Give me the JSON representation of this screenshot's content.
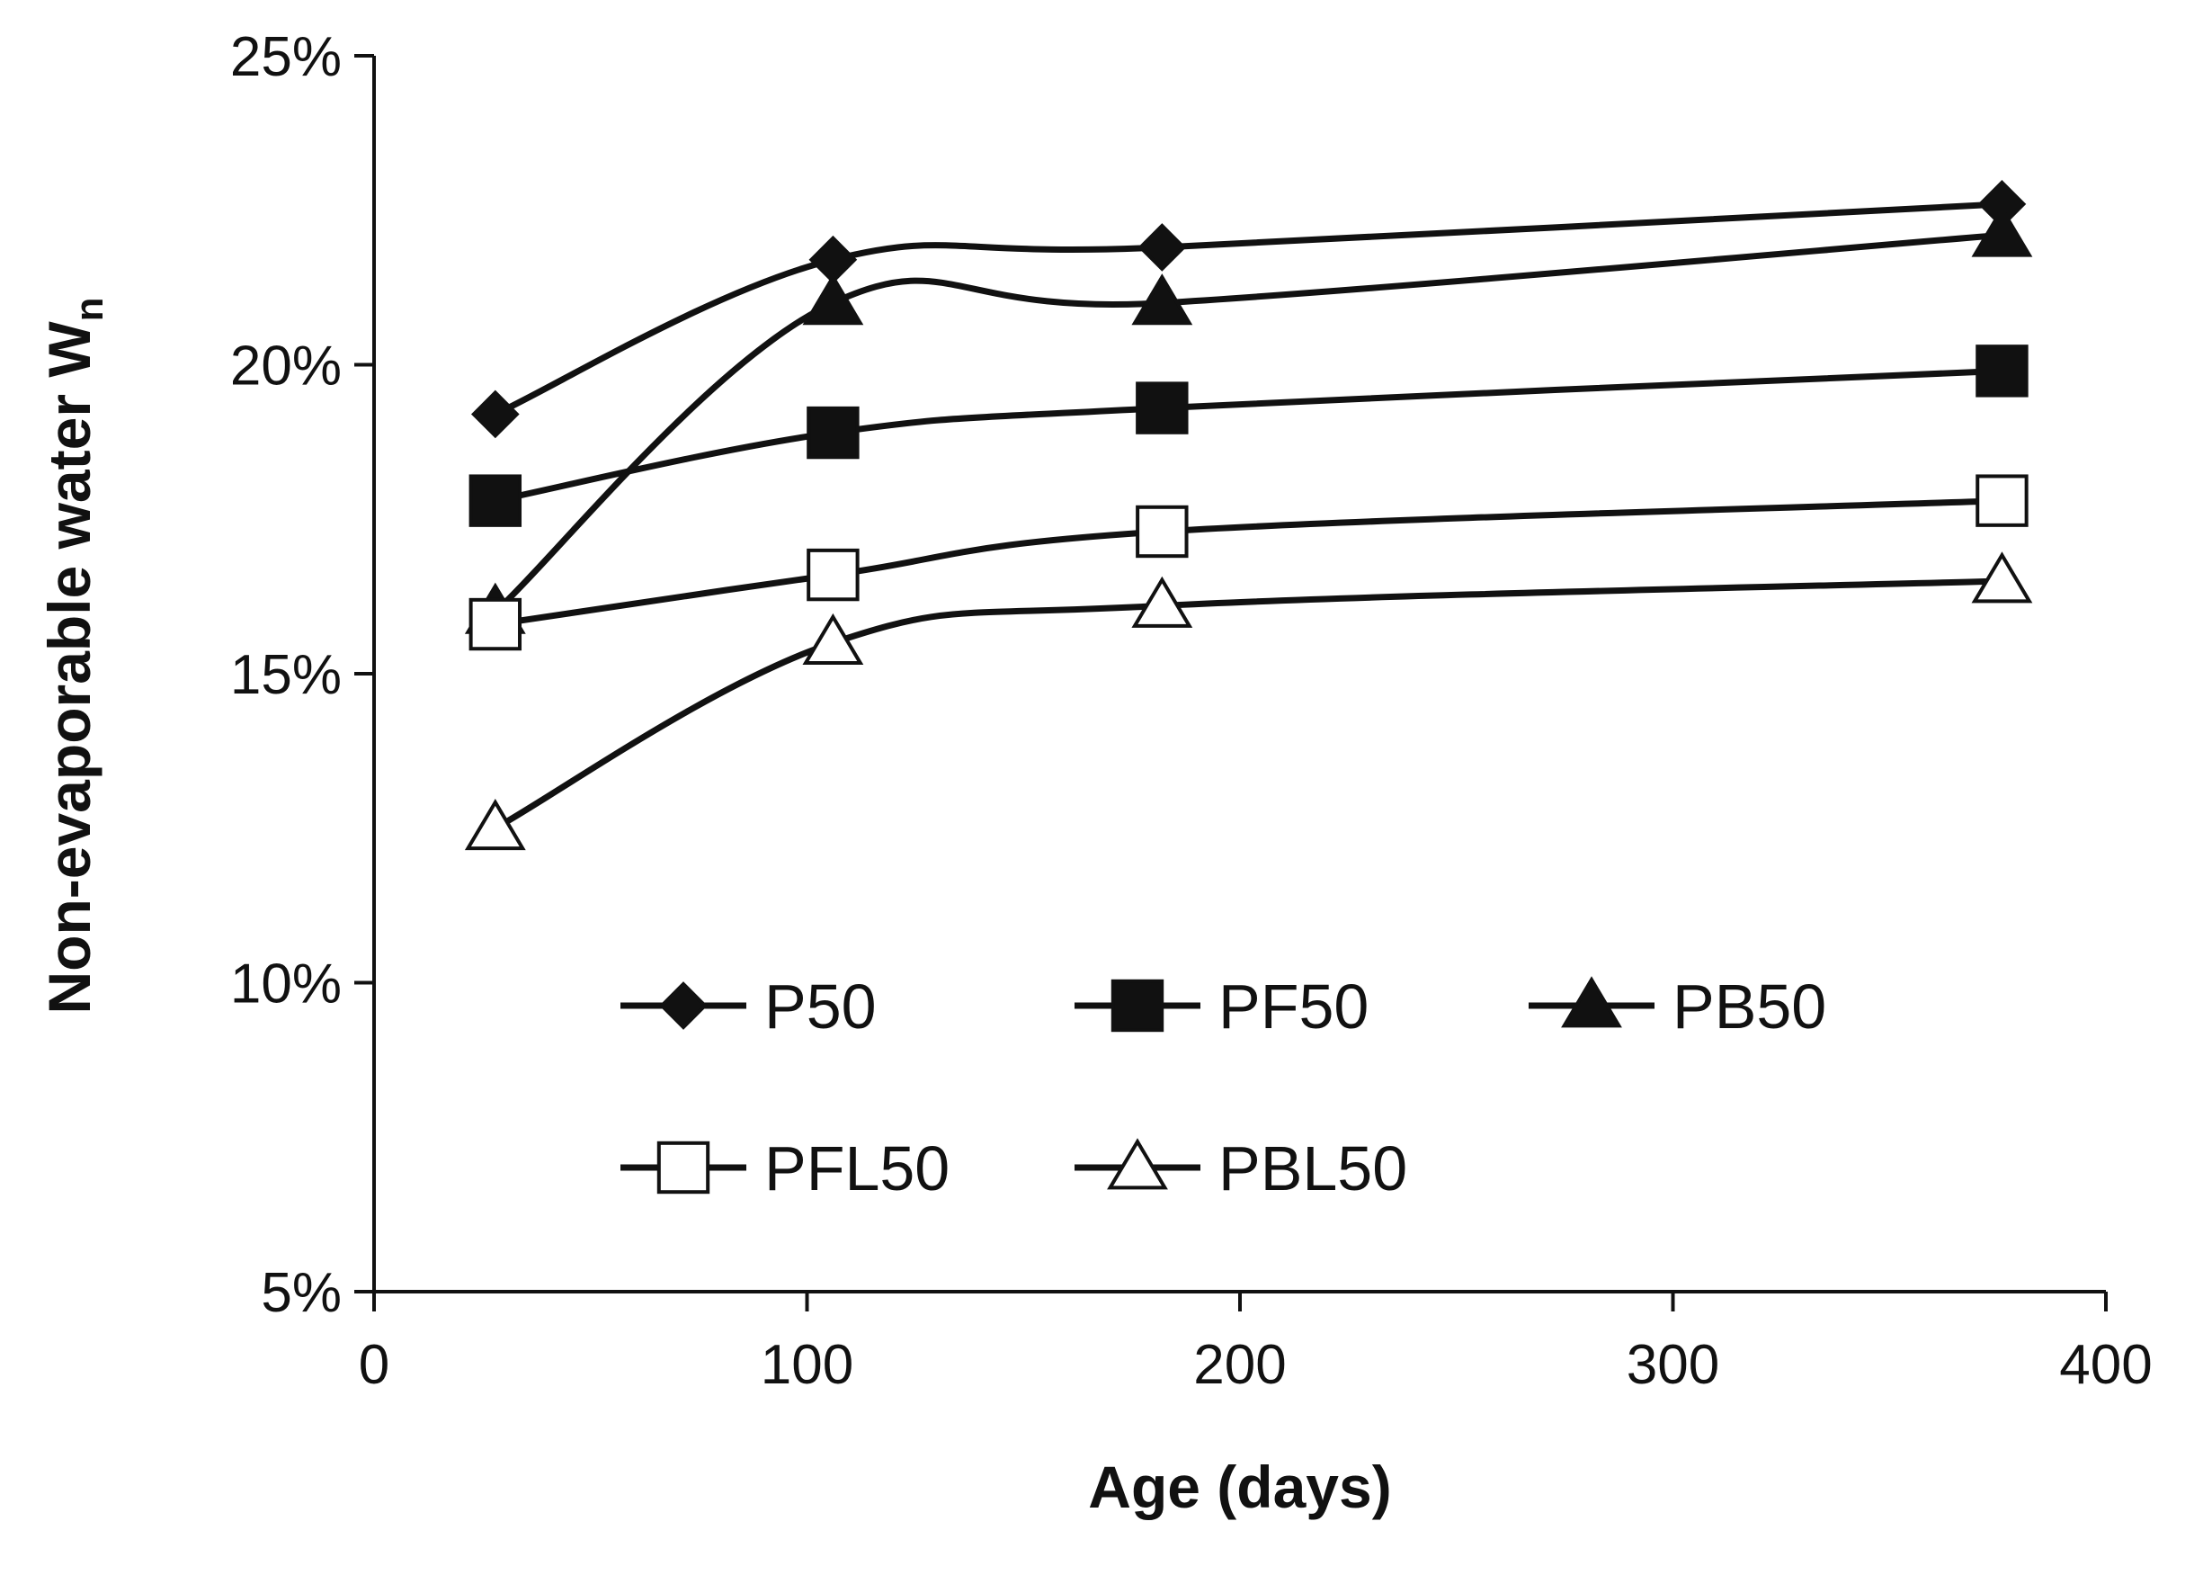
{
  "chart_data": {
    "type": "line",
    "xlabel": "Age (days)",
    "ylabel": "Non-evaporable water W",
    "ylabel_subscript": "n",
    "xlim": [
      0,
      400
    ],
    "ylim": [
      0.05,
      0.25
    ],
    "xticks": [
      0,
      100,
      200,
      300,
      400
    ],
    "xtick_labels": [
      "0",
      "100",
      "200",
      "300",
      "400"
    ],
    "yticks": [
      0.05,
      0.1,
      0.15,
      0.2,
      0.25
    ],
    "ytick_labels": [
      "5%",
      "10%",
      "15%",
      "20%",
      "25%"
    ],
    "grid": false,
    "legend_position": "inside-lower-center",
    "series": [
      {
        "name": "P50",
        "marker": "diamond",
        "filled": true,
        "x": [
          28,
          106,
          182,
          376
        ],
        "y": [
          0.192,
          0.217,
          0.219,
          0.226
        ]
      },
      {
        "name": "PF50",
        "marker": "square",
        "filled": true,
        "x": [
          28,
          106,
          182,
          376
        ],
        "y": [
          0.178,
          0.189,
          0.193,
          0.199
        ]
      },
      {
        "name": "PB50",
        "marker": "triangle",
        "filled": true,
        "x": [
          28,
          106,
          182,
          376
        ],
        "y": [
          0.16,
          0.21,
          0.21,
          0.221
        ]
      },
      {
        "name": "PFL50",
        "marker": "square-open",
        "filled": false,
        "x": [
          28,
          106,
          182,
          376
        ],
        "y": [
          0.158,
          0.166,
          0.173,
          0.178
        ]
      },
      {
        "name": "PBL50",
        "marker": "triangle-open",
        "filled": false,
        "x": [
          28,
          106,
          182,
          376
        ],
        "y": [
          0.125,
          0.155,
          0.161,
          0.165
        ]
      }
    ]
  }
}
